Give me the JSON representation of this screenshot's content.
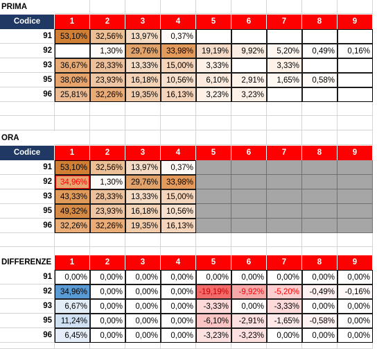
{
  "prima": {
    "title": "PRIMA",
    "code_header": "Codice",
    "columns": [
      "1",
      "2",
      "3",
      "4",
      "5",
      "6",
      "7",
      "8",
      "9"
    ],
    "rows": [
      {
        "code": "91",
        "cells": [
          "53,10%",
          "32,56%",
          "13,97%",
          "0,37%",
          "",
          "",
          "",
          "",
          ""
        ]
      },
      {
        "code": "92",
        "cells": [
          "",
          "1,30%",
          "29,76%",
          "33,98%",
          "19,19%",
          "9,92%",
          "5,20%",
          "0,49%",
          "0,16%"
        ]
      },
      {
        "code": "93",
        "cells": [
          "36,67%",
          "28,33%",
          "13,33%",
          "15,00%",
          "3,33%",
          "",
          "3,33%",
          "",
          ""
        ]
      },
      {
        "code": "95",
        "cells": [
          "38,08%",
          "23,93%",
          "16,18%",
          "10,56%",
          "6,10%",
          "2,91%",
          "1,65%",
          "0,58%",
          ""
        ]
      },
      {
        "code": "96",
        "cells": [
          "25,81%",
          "32,26%",
          "19,35%",
          "16,13%",
          "3,23%",
          "3,23%",
          "",
          "",
          ""
        ]
      }
    ],
    "colors": [
      [
        "#d07f35",
        "#edbf95",
        "#f5dbc4",
        "#fefaf7",
        "#ffffff",
        "#ffffff",
        "#ffffff",
        "#ffffff",
        "#ffffff"
      ],
      [
        "#ffffff",
        "#fefaf7",
        "#e2a36b",
        "#e39a5b",
        "#f6dcc8",
        "#fbede3",
        "#fef6f0",
        "#ffffff",
        "#ffffff"
      ],
      [
        "#e8ab75",
        "#ecc09a",
        "#f5dbc4",
        "#f4d4bb",
        "#fdf1e8",
        "#ffffff",
        "#fdf1e8",
        "#ffffff",
        "#ffffff"
      ],
      [
        "#e6a46c",
        "#eec6a3",
        "#f3d2b6",
        "#f7e1ce",
        "#fbeadd",
        "#fdf3eb",
        "#fef8f3",
        "#fffbf8",
        "#ffffff"
      ],
      [
        "#ecbb92",
        "#e9ac77",
        "#f1cbaa",
        "#f4d4bb",
        "#fdf1e8",
        "#fdf1e8",
        "#ffffff",
        "#ffffff",
        "#ffffff"
      ]
    ]
  },
  "ora": {
    "title": "ORA",
    "code_header": "Codice",
    "columns": [
      "1",
      "2",
      "3",
      "4",
      "5",
      "6",
      "7",
      "8",
      "9"
    ],
    "rows": [
      {
        "code": "91",
        "cells": [
          "53,10%",
          "32,56%",
          "13,97%",
          "0,37%",
          "",
          "",
          "",
          "",
          ""
        ]
      },
      {
        "code": "92",
        "cells": [
          "34,96%",
          "1,30%",
          "29,76%",
          "33,98%",
          "",
          "",
          "",
          "",
          ""
        ]
      },
      {
        "code": "93",
        "cells": [
          "43,33%",
          "28,33%",
          "13,33%",
          "15,00%",
          "",
          "",
          "",
          "",
          ""
        ]
      },
      {
        "code": "95",
        "cells": [
          "49,32%",
          "23,93%",
          "16,18%",
          "10,56%",
          "",
          "",
          "",
          "",
          ""
        ]
      },
      {
        "code": "96",
        "cells": [
          "32,26%",
          "32,26%",
          "19,35%",
          "16,13%",
          "",
          "",
          "",
          "",
          ""
        ]
      }
    ],
    "colors": [
      [
        "#d07f35",
        "#edbf95",
        "#f5dbc4",
        "#fefaf7",
        "#a6a6a6",
        "#a6a6a6",
        "#a6a6a6",
        "#a6a6a6",
        "#a6a6a6"
      ],
      [
        "#e7a571",
        "#fefaf7",
        "#e2a36b",
        "#e39a5b",
        "#a6a6a6",
        "#a6a6a6",
        "#a6a6a6",
        "#a6a6a6",
        "#a6a6a6"
      ],
      [
        "#e09a5a",
        "#ecc09a",
        "#f5dbc4",
        "#f4d4bb",
        "#a6a6a6",
        "#a6a6a6",
        "#a6a6a6",
        "#a6a6a6",
        "#a6a6a6"
      ],
      [
        "#d58a45",
        "#eec6a3",
        "#f3d2b6",
        "#f7e1ce",
        "#a6a6a6",
        "#a6a6a6",
        "#a6a6a6",
        "#a6a6a6",
        "#a6a6a6"
      ],
      [
        "#e9ac77",
        "#e9ac77",
        "#f1cbaa",
        "#f4d4bb",
        "#a6a6a6",
        "#a6a6a6",
        "#a6a6a6",
        "#a6a6a6",
        "#a6a6a6"
      ]
    ]
  },
  "differenze": {
    "title": "DIFFERENZE",
    "columns": [
      "1",
      "2",
      "3",
      "4",
      "5",
      "6",
      "7",
      "8",
      "9"
    ],
    "rows": [
      {
        "code": "91",
        "cells": [
          "0,00%",
          "0,00%",
          "0,00%",
          "0,00%",
          "0,00%",
          "0,00%",
          "0,00%",
          "0,00%",
          "0,00%"
        ]
      },
      {
        "code": "92",
        "cells": [
          "34,96%",
          "0,00%",
          "0,00%",
          "0,00%",
          "-19,19%",
          "-9,92%",
          "-5,20%",
          "-0,49%",
          "-0,16%"
        ]
      },
      {
        "code": "93",
        "cells": [
          "6,67%",
          "0,00%",
          "0,00%",
          "0,00%",
          "-3,33%",
          "0,00%",
          "-3,33%",
          "0,00%",
          "0,00%"
        ]
      },
      {
        "code": "95",
        "cells": [
          "11,24%",
          "0,00%",
          "0,00%",
          "0,00%",
          "-6,10%",
          "-2,91%",
          "-1,65%",
          "-0,58%",
          "0,00%"
        ]
      },
      {
        "code": "96",
        "cells": [
          "6,45%",
          "0,00%",
          "0,00%",
          "0,00%",
          "-3,23%",
          "-3,23%",
          "0,00%",
          "0,00%",
          "0,00%"
        ]
      }
    ],
    "colors": [
      [
        "#ffffff",
        "#ffffff",
        "#ffffff",
        "#ffffff",
        "#ffffff",
        "#ffffff",
        "#ffffff",
        "#ffffff",
        "#ffffff"
      ],
      [
        "#5b9bd5",
        "#ffffff",
        "#ffffff",
        "#ffffff",
        "#f26b6b",
        "#f7a8a8",
        "#fbcfcf",
        "#fff1f1",
        "#fff8f8"
      ],
      [
        "#e3edf8",
        "#ffffff",
        "#ffffff",
        "#ffffff",
        "#fdd9d9",
        "#ffffff",
        "#fdd9d9",
        "#ffffff",
        "#ffffff"
      ],
      [
        "#cfe0f2",
        "#ffffff",
        "#ffffff",
        "#ffffff",
        "#fbc4c4",
        "#fde0e0",
        "#fee9e9",
        "#fff3f3",
        "#ffffff"
      ],
      [
        "#e5eef8",
        "#ffffff",
        "#ffffff",
        "#ffffff",
        "#fde0e0",
        "#fde0e0",
        "#ffffff",
        "#ffffff",
        "#ffffff"
      ]
    ]
  }
}
